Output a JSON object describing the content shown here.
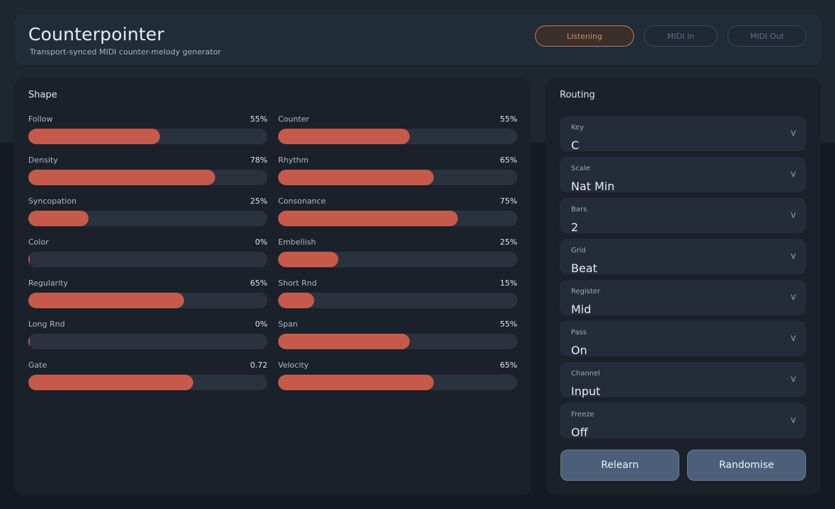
{
  "header": {
    "title": "Counterpointer",
    "subtitle": "Transport-synced MIDI counter-melody generator",
    "pills": [
      {
        "label": "Listening",
        "active": true
      },
      {
        "label": "MIDI In",
        "active": false
      },
      {
        "label": "MIDI Out",
        "active": false
      }
    ]
  },
  "shape": {
    "title": "Shape",
    "sliders": [
      {
        "label": "Follow",
        "value": "55%",
        "level": 0.55
      },
      {
        "label": "Counter",
        "value": "55%",
        "level": 0.55
      },
      {
        "label": "Density",
        "value": "78%",
        "level": 0.78
      },
      {
        "label": "Rhythm",
        "value": "65%",
        "level": 0.65
      },
      {
        "label": "Syncopation",
        "value": "25%",
        "level": 0.25
      },
      {
        "label": "Consonance",
        "value": "75%",
        "level": 0.75
      },
      {
        "label": "Color",
        "value": "0%",
        "level": 0
      },
      {
        "label": "Embellish",
        "value": "25%",
        "level": 0.25
      },
      {
        "label": "Regularity",
        "value": "65%",
        "level": 0.65
      },
      {
        "label": "Short Rnd",
        "value": "15%",
        "level": 0.15
      },
      {
        "label": "Long Rnd",
        "value": "0%",
        "level": 0
      },
      {
        "label": "Span",
        "value": "55%",
        "level": 0.55
      },
      {
        "label": "Gate",
        "value": "0.72",
        "level": 0.69
      },
      {
        "label": "Velocity",
        "value": "65%",
        "level": 0.65
      }
    ]
  },
  "routing": {
    "title": "Routing",
    "selects": [
      {
        "label": "Key",
        "value": "C"
      },
      {
        "label": "Scale",
        "value": "Nat Min"
      },
      {
        "label": "Bars",
        "value": "2"
      },
      {
        "label": "Grid",
        "value": "Beat"
      },
      {
        "label": "Register",
        "value": "Mid"
      },
      {
        "label": "Pass",
        "value": "On"
      },
      {
        "label": "Channel",
        "value": "Input"
      },
      {
        "label": "Freeze",
        "value": "Off"
      }
    ],
    "chevron": "v",
    "relearn_label": "Relearn",
    "randomise_label": "Randomise"
  },
  "colors": {
    "accent": "#c65a4a",
    "listening": "#d88c5e",
    "button": "#4b5f79"
  }
}
